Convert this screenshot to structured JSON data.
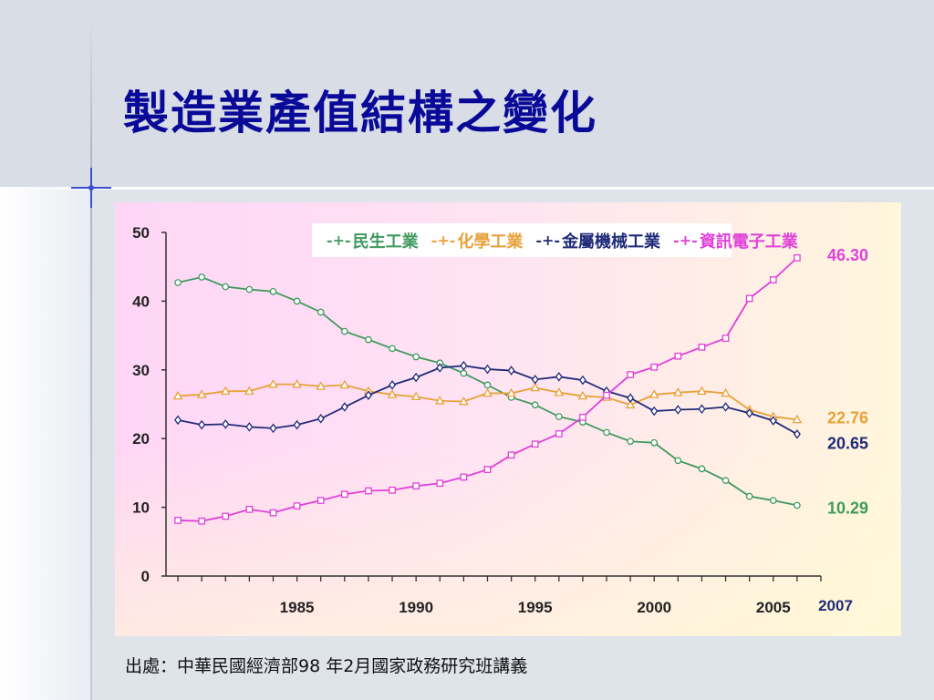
{
  "slide": {
    "title": "製造業產值結構之變化",
    "source": "出處：中華民國經濟部98 年2月國家政務研究班講義"
  },
  "chart_data": {
    "type": "line",
    "title": "",
    "xlabel": "",
    "ylabel": "",
    "x": [
      1980,
      1981,
      1982,
      1983,
      1984,
      1985,
      1986,
      1987,
      1988,
      1989,
      1990,
      1991,
      1992,
      1993,
      1994,
      1995,
      1996,
      1997,
      1998,
      1999,
      2000,
      2001,
      2002,
      2003,
      2004,
      2005,
      2006
    ],
    "xlim": [
      1979.5,
      2007
    ],
    "x_ticks": [
      1985,
      1990,
      1995,
      2000,
      2005,
      2007
    ],
    "y_ticks": [
      0,
      10,
      20,
      30,
      40,
      50
    ],
    "ylim": [
      0,
      50
    ],
    "grid": false,
    "legend": "top",
    "series": [
      {
        "name": "民生工業",
        "color": "#3f9a5f",
        "marker": "circle",
        "end_label": "10.29",
        "values": [
          42.7,
          43.5,
          42.1,
          41.7,
          41.4,
          40.0,
          38.4,
          35.6,
          34.4,
          33.1,
          31.9,
          31.0,
          29.5,
          27.8,
          26.0,
          24.9,
          23.2,
          22.4,
          20.9,
          19.6,
          19.4,
          16.8,
          15.6,
          13.9,
          11.6,
          11.0,
          10.29
        ]
      },
      {
        "name": "化學工業",
        "color": "#e8a13a",
        "marker": "triangle",
        "end_label": "22.76",
        "values": [
          26.2,
          26.4,
          26.9,
          26.9,
          27.9,
          27.9,
          27.6,
          27.8,
          26.9,
          26.4,
          26.1,
          25.5,
          25.4,
          26.6,
          26.6,
          27.4,
          26.7,
          26.2,
          26.0,
          24.9,
          26.4,
          26.7,
          26.9,
          26.6,
          24.2,
          23.2,
          22.76
        ]
      },
      {
        "name": "金屬機械工業",
        "color": "#1f2b78",
        "marker": "diamond",
        "end_label": "20.65",
        "values": [
          22.7,
          22.0,
          22.1,
          21.7,
          21.5,
          22.0,
          22.9,
          24.6,
          26.3,
          27.8,
          28.9,
          30.3,
          30.6,
          30.1,
          29.9,
          28.6,
          29.0,
          28.5,
          26.9,
          25.9,
          24.0,
          24.2,
          24.3,
          24.6,
          23.7,
          22.6,
          20.65
        ]
      },
      {
        "name": "資訊電子工業",
        "color": "#e040d8",
        "marker": "square",
        "end_label": "46.30",
        "values": [
          8.1,
          8.0,
          8.7,
          9.7,
          9.2,
          10.2,
          11.0,
          11.9,
          12.4,
          12.5,
          13.1,
          13.5,
          14.4,
          15.5,
          17.6,
          19.2,
          20.7,
          23.1,
          26.3,
          29.3,
          30.4,
          32.0,
          33.3,
          34.6,
          40.4,
          43.1,
          46.3
        ]
      }
    ]
  }
}
